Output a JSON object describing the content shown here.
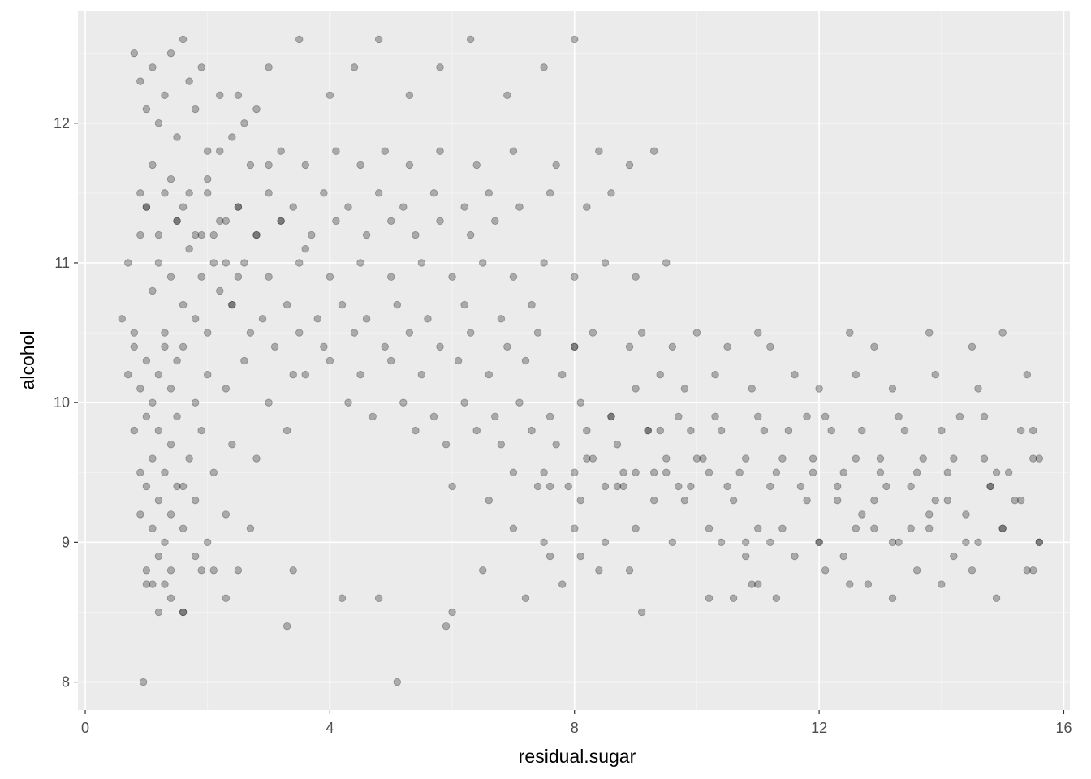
{
  "chart_data": {
    "type": "scatter",
    "xlabel": "residual.sugar",
    "ylabel": "alcohol",
    "xlim": [
      -0.12,
      16.1
    ],
    "ylim": [
      7.8,
      12.8
    ],
    "x_ticks": [
      0,
      4,
      8,
      12,
      16
    ],
    "y_ticks": [
      8,
      9,
      10,
      11,
      12
    ],
    "x_tick_labels": [
      "0",
      "4",
      "8",
      "12",
      "16"
    ],
    "y_tick_labels": [
      "8",
      "9",
      "10",
      "11",
      "12"
    ],
    "grid": true,
    "legend": "none",
    "point_color": "#000000",
    "point_alpha": 0.28,
    "panel_background": "#ebebeb",
    "series": [
      {
        "x": [
          0.6,
          0.7,
          0.8,
          0.9,
          1.0,
          1.1,
          1.2,
          1.3,
          1.4,
          1.5,
          1.6,
          1.7,
          1.8,
          1.9,
          2.0,
          2.1,
          2.2,
          2.3,
          2.4,
          2.5,
          0.8,
          0.9,
          1.0,
          1.1,
          1.2,
          1.3,
          1.4,
          1.5,
          1.6,
          1.7,
          1.8,
          1.9,
          2.0,
          2.2,
          2.4,
          2.6,
          2.8,
          3.0,
          0.9,
          1.0,
          1.1,
          1.2,
          1.3,
          1.4,
          1.5,
          1.6,
          1.7,
          1.8,
          2.0,
          2.2,
          2.5,
          2.8,
          3.2,
          3.6,
          0.7,
          0.8,
          0.9,
          1.0,
          1.1,
          1.2,
          1.3,
          1.4,
          1.5,
          1.6,
          1.8,
          2.0,
          2.3,
          2.6,
          3.0,
          3.4,
          0.8,
          0.9,
          1.0,
          1.1,
          1.2,
          1.3,
          1.4,
          1.5,
          1.6,
          1.7,
          1.9,
          2.1,
          2.4,
          2.8,
          3.3,
          0.9,
          1.0,
          1.1,
          1.2,
          1.3,
          1.4,
          1.5,
          1.6,
          1.8,
          2.0,
          2.3,
          2.7,
          1.0,
          1.1,
          1.2,
          1.3,
          1.4,
          1.6,
          1.8,
          2.1,
          2.5,
          1.0,
          1.2,
          1.4,
          1.6,
          1.9,
          2.3,
          0.95,
          5.1,
          3.3,
          3.4,
          4.2,
          4.8,
          5.9,
          6.0,
          6.5,
          7.2,
          7.8,
          7.6,
          8.1,
          8.4,
          8.9,
          9.1,
          10.2,
          10.6,
          10.9,
          11.0,
          11.3,
          12.1,
          12.5,
          12.8,
          13.2,
          13.6,
          14.0,
          14.5,
          14.9,
          15.4,
          10.4,
          10.8,
          11.2,
          11.6,
          12.0,
          12.4,
          12.9,
          13.3,
          13.8,
          14.2,
          14.6,
          15.0,
          15.5,
          9.8,
          10.5,
          11.0,
          11.7,
          12.3,
          12.7,
          13.1,
          13.5,
          13.9,
          14.4,
          14.8,
          15.2,
          15.6,
          9.5,
          10.0,
          10.7,
          11.4,
          11.9,
          12.6,
          13.0,
          13.7,
          14.1,
          14.7,
          15.1,
          15.5,
          9.2,
          9.9,
          10.3,
          11.1,
          11.8,
          12.2,
          13.4,
          14.3,
          15.3,
          7.5,
          7.9,
          8.3,
          8.8,
          9.3,
          9.7,
          10.1,
          6.0,
          6.6,
          7.0,
          7.4,
          8.0,
          8.5,
          9.0,
          5.4,
          5.9,
          6.4,
          6.8,
          7.3,
          7.7,
          8.2,
          8.7,
          9.4,
          4.3,
          4.7,
          5.2,
          5.7,
          6.2,
          6.7,
          7.1,
          7.6,
          8.1,
          8.6,
          3.6,
          4.0,
          4.5,
          5.0,
          5.5,
          6.1,
          6.6,
          7.2,
          7.8,
          2.7,
          3.1,
          3.5,
          3.9,
          4.4,
          4.9,
          5.3,
          5.8,
          6.3,
          6.9,
          7.4,
          8.0,
          2.4,
          2.9,
          3.3,
          3.8,
          4.2,
          4.6,
          5.1,
          5.6,
          6.2,
          6.8,
          7.3,
          2.1,
          2.6,
          3.0,
          3.5,
          4.0,
          4.5,
          5.0,
          5.5,
          6.0,
          6.5,
          7.0,
          7.5,
          8.0,
          8.5,
          9.0,
          9.5,
          1.9,
          2.3,
          2.8,
          3.2,
          3.7,
          4.1,
          4.6,
          5.0,
          5.4,
          5.8,
          6.3,
          6.7,
          2.0,
          2.5,
          3.0,
          3.4,
          3.9,
          4.3,
          4.8,
          5.2,
          5.7,
          6.2,
          6.6,
          7.1,
          7.6,
          8.2,
          8.6,
          2.2,
          2.7,
          3.2,
          3.6,
          4.1,
          4.5,
          4.9,
          5.3,
          5.8,
          6.4,
          7.0,
          7.7,
          8.4,
          8.9,
          9.3,
          2.5,
          3.0,
          3.5,
          4.0,
          4.4,
          4.8,
          5.3,
          5.8,
          6.3,
          6.9,
          7.5,
          8.0,
          8.0,
          8.3,
          8.9,
          9.1,
          9.6,
          10.0,
          10.5,
          11.0,
          11.2,
          12.5,
          12.9,
          13.8,
          14.5,
          15.0,
          9.0,
          9.4,
          9.8,
          10.3,
          10.9,
          11.6,
          12.0,
          12.6,
          13.2,
          13.9,
          14.6,
          15.4,
          8.6,
          9.2,
          9.7,
          10.4,
          11.0,
          11.5,
          12.1,
          12.7,
          13.3,
          14.0,
          14.7,
          15.5,
          8.2,
          8.8,
          9.5,
          10.2,
          10.8,
          11.3,
          11.9,
          12.4,
          13.0,
          13.6,
          14.2,
          14.9,
          15.6,
          7.6,
          8.1,
          8.7,
          9.3,
          9.9,
          10.6,
          11.2,
          11.8,
          12.3,
          12.9,
          13.5,
          14.1,
          14.8,
          15.3,
          7.0,
          7.5,
          8.0,
          8.5,
          9.0,
          9.6,
          10.2,
          10.8,
          11.4,
          12.0,
          12.6,
          13.2,
          13.8,
          14.4,
          15.0,
          15.6
        ],
        "y": [
          10.6,
          11.0,
          10.5,
          11.2,
          11.4,
          10.8,
          11.0,
          10.4,
          10.9,
          11.3,
          10.7,
          11.1,
          10.6,
          10.9,
          10.5,
          11.2,
          10.8,
          11.0,
          10.7,
          10.9,
          12.5,
          12.3,
          12.1,
          12.4,
          12.0,
          12.2,
          12.5,
          11.9,
          12.6,
          12.3,
          12.1,
          12.4,
          11.8,
          12.2,
          11.9,
          12.0,
          12.1,
          11.7,
          11.5,
          11.4,
          11.7,
          11.2,
          11.5,
          11.6,
          11.3,
          11.4,
          11.5,
          11.2,
          11.6,
          11.3,
          11.4,
          11.2,
          11.3,
          11.1,
          10.2,
          10.4,
          10.1,
          10.3,
          10.0,
          10.2,
          10.5,
          10.1,
          10.3,
          10.4,
          10.0,
          10.2,
          10.1,
          10.3,
          10.0,
          10.2,
          9.8,
          9.5,
          9.9,
          9.6,
          9.8,
          9.5,
          9.7,
          9.9,
          9.4,
          9.6,
          9.8,
          9.5,
          9.7,
          9.6,
          9.8,
          9.2,
          9.4,
          9.1,
          9.3,
          9.0,
          9.2,
          9.4,
          9.1,
          9.3,
          9.0,
          9.2,
          9.1,
          8.8,
          8.7,
          8.9,
          8.7,
          8.8,
          8.5,
          8.9,
          8.8,
          8.8,
          8.7,
          8.5,
          8.6,
          8.5,
          8.8,
          8.6,
          8.0,
          8.0,
          8.4,
          8.8,
          8.6,
          8.6,
          8.4,
          8.5,
          8.8,
          8.6,
          8.7,
          8.9,
          8.9,
          8.8,
          8.8,
          8.5,
          8.6,
          8.6,
          8.7,
          8.7,
          8.6,
          8.8,
          8.7,
          8.7,
          8.6,
          8.8,
          8.7,
          8.8,
          8.6,
          8.8,
          9.0,
          8.9,
          9.0,
          8.9,
          9.0,
          8.9,
          9.1,
          9.0,
          9.2,
          8.9,
          9.0,
          9.1,
          8.8,
          9.3,
          9.4,
          9.1,
          9.4,
          9.3,
          9.2,
          9.4,
          9.1,
          9.3,
          9.2,
          9.4,
          9.3,
          9.0,
          9.5,
          9.6,
          9.5,
          9.6,
          9.5,
          9.6,
          9.5,
          9.6,
          9.5,
          9.6,
          9.5,
          9.6,
          9.8,
          9.8,
          9.9,
          9.8,
          9.9,
          9.8,
          9.8,
          9.9,
          9.8,
          9.5,
          9.4,
          9.6,
          9.4,
          9.5,
          9.4,
          9.6,
          9.4,
          9.3,
          9.5,
          9.4,
          9.5,
          9.4,
          9.5,
          9.8,
          9.7,
          9.8,
          9.7,
          9.8,
          9.7,
          9.8,
          9.7,
          9.8,
          10.0,
          9.9,
          10.0,
          9.9,
          10.0,
          9.9,
          10.0,
          9.9,
          10.0,
          9.9,
          10.2,
          10.3,
          10.2,
          10.3,
          10.2,
          10.3,
          10.2,
          10.3,
          10.2,
          10.5,
          10.4,
          10.5,
          10.4,
          10.5,
          10.4,
          10.5,
          10.4,
          10.5,
          10.4,
          10.5,
          10.4,
          10.7,
          10.6,
          10.7,
          10.6,
          10.7,
          10.6,
          10.7,
          10.6,
          10.7,
          10.6,
          10.7,
          11.0,
          11.0,
          10.9,
          11.0,
          10.9,
          11.0,
          10.9,
          11.0,
          10.9,
          11.0,
          10.9,
          11.0,
          10.9,
          11.0,
          10.9,
          11.0,
          11.2,
          11.3,
          11.2,
          11.3,
          11.2,
          11.3,
          11.2,
          11.3,
          11.2,
          11.3,
          11.2,
          11.3,
          11.5,
          11.4,
          11.5,
          11.4,
          11.5,
          11.4,
          11.5,
          11.4,
          11.5,
          11.4,
          11.5,
          11.4,
          11.5,
          11.4,
          11.5,
          11.8,
          11.7,
          11.8,
          11.7,
          11.8,
          11.7,
          11.8,
          11.7,
          11.8,
          11.7,
          11.8,
          11.7,
          11.8,
          11.7,
          11.8,
          12.2,
          12.4,
          12.6,
          12.2,
          12.4,
          12.6,
          12.2,
          12.4,
          12.6,
          12.2,
          12.4,
          12.6,
          10.4,
          10.5,
          10.4,
          10.5,
          10.4,
          10.5,
          10.4,
          10.5,
          10.4,
          10.5,
          10.4,
          10.5,
          10.4,
          10.5,
          10.1,
          10.2,
          10.1,
          10.2,
          10.1,
          10.2,
          10.1,
          10.2,
          10.1,
          10.2,
          10.1,
          10.2,
          9.9,
          9.8,
          9.9,
          9.8,
          9.9,
          9.8,
          9.9,
          9.8,
          9.9,
          9.8,
          9.9,
          9.8,
          9.6,
          9.5,
          9.6,
          9.5,
          9.6,
          9.5,
          9.6,
          9.5,
          9.6,
          9.5,
          9.6,
          9.5,
          9.6,
          9.4,
          9.3,
          9.4,
          9.3,
          9.4,
          9.3,
          9.4,
          9.3,
          9.4,
          9.3,
          9.4,
          9.3,
          9.4,
          9.3,
          9.1,
          9.0,
          9.1,
          9.0,
          9.1,
          9.0,
          9.1,
          9.0,
          9.1,
          9.0,
          9.1,
          9.0,
          9.1,
          9.0,
          9.1,
          9.0
        ]
      }
    ]
  }
}
